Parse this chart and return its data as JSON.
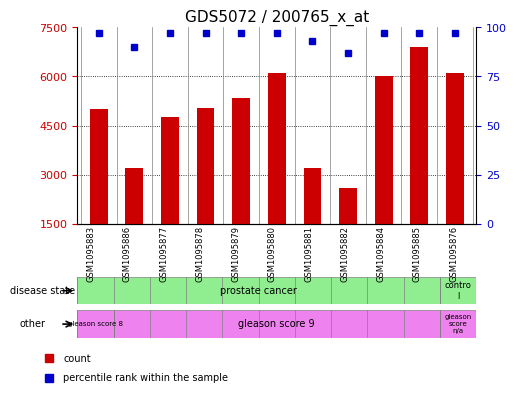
{
  "title": "GDS5072 / 200765_x_at",
  "samples": [
    "GSM1095883",
    "GSM1095886",
    "GSM1095877",
    "GSM1095878",
    "GSM1095879",
    "GSM1095880",
    "GSM1095881",
    "GSM1095882",
    "GSM1095884",
    "GSM1095885",
    "GSM1095876"
  ],
  "counts": [
    5000,
    3200,
    4750,
    5050,
    5350,
    6100,
    3200,
    2600,
    6000,
    6900,
    6100
  ],
  "percentile_ranks": [
    97,
    90,
    97,
    97,
    97,
    97,
    93,
    87,
    97,
    97,
    97
  ],
  "ylim_left": [
    1500,
    7500
  ],
  "ylim_right": [
    0,
    100
  ],
  "yticks_left": [
    1500,
    3000,
    4500,
    6000,
    7500
  ],
  "yticks_right": [
    0,
    25,
    50,
    75,
    100
  ],
  "bar_color": "#cc0000",
  "dot_color": "#0000cc",
  "grid_color": "#000000",
  "disease_state_row_label": "disease state",
  "other_row_label": "other",
  "legend_count_label": "count",
  "legend_percentile_label": "percentile rank within the sample",
  "title_fontsize": 11,
  "tick_fontsize": 8,
  "label_fontsize": 7,
  "gleason_score_na_label": "gleason\nscore\nn/a",
  "control_label": "contro\nl",
  "prostate_cancer_label": "prostate cancer",
  "gleason8_label": "gleason score 8",
  "gleason9_label": "gleason score 9",
  "green_color": "#90ee90",
  "magenta_color": "#ee82ee"
}
